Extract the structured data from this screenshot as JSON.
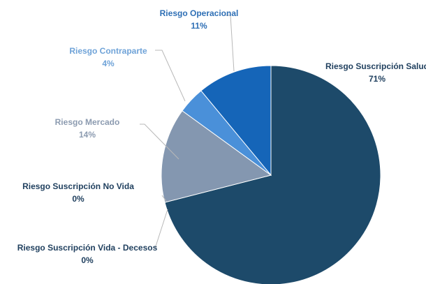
{
  "chart_data": {
    "type": "pie",
    "categories": [
      "Riesgo Suscripción Salud",
      "Riesgo Suscripción Vida - Decesos",
      "Riesgo Suscripción No Vida",
      "Riesgo Mercado",
      "Riesgo Contraparte",
      "Riesgo Operacional"
    ],
    "values": [
      71,
      0,
      0,
      14,
      4,
      11
    ],
    "value_labels": [
      "71%",
      "0%",
      "0%",
      "14%",
      "4%",
      "11%"
    ],
    "colors": [
      "#1d4a6a",
      "#1d4a6a",
      "#1d4a6a",
      "#8497b0",
      "#4a90d9",
      "#1565b8"
    ],
    "label_colors": [
      "#1f3f5e",
      "#1f3f5e",
      "#1f3f5e",
      "#8c9bb0",
      "#6fa3d8",
      "#2e6fb5"
    ]
  }
}
